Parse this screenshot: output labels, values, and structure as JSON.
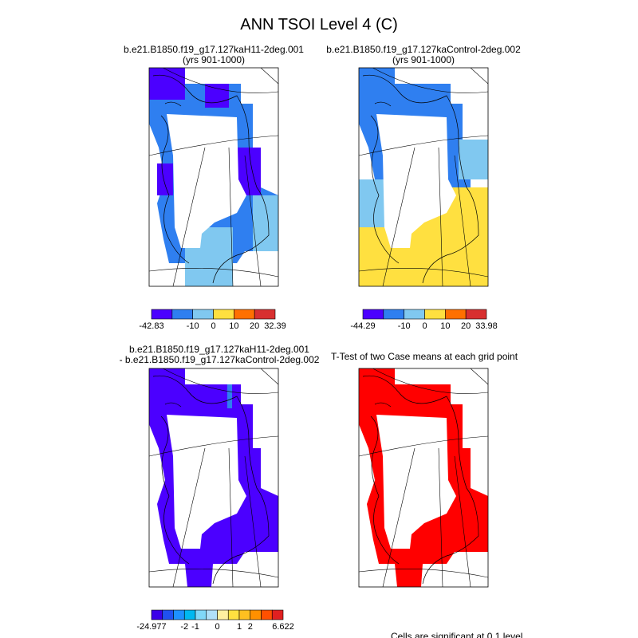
{
  "title": "ANN TSOI Level 4 (C)",
  "panels": [
    {
      "title": [
        "b.e21.B1850.f19_g17.127kaH11-2deg.001",
        "(yrs 901-1000)"
      ],
      "colorbar": {
        "colors": [
          "#4b00ff",
          "#2f7ff0",
          "#80c8f0",
          "#ffe040",
          "#ff7000",
          "#d83030"
        ],
        "labels": [
          -42.83,
          -10,
          0,
          10,
          20,
          32.39
        ]
      }
    },
    {
      "title": [
        "b.e21.B1850.f19_g17.127kaControl-2deg.002",
        "(yrs 901-1000)"
      ],
      "colorbar": {
        "colors": [
          "#4b00ff",
          "#2f7ff0",
          "#80c8f0",
          "#ffe040",
          "#ff7000",
          "#d83030"
        ],
        "labels": [
          -44.29,
          -10,
          0,
          10,
          20,
          33.98
        ]
      }
    },
    {
      "title": [
        "b.e21.B1850.f19_g17.127kaH11-2deg.001",
        "- b.e21.B1850.f19_g17.127kaControl-2deg.002"
      ],
      "colorbar": {
        "colors": [
          "#3a00e8",
          "#2050f0",
          "#1e90ff",
          "#00b8f0",
          "#80d8f8",
          "#b0e0f8",
          "#fff0a0",
          "#ffe040",
          "#ffc020",
          "#ff9000",
          "#ff5000",
          "#e02020"
        ],
        "labels": [
          -24.977,
          -2,
          -1,
          0,
          1,
          2,
          6.622
        ]
      }
    },
    {
      "title": [
        "T-Test of two Case means at each grid point"
      ]
    }
  ],
  "footnote": "Cells are significant at 0.1 level"
}
